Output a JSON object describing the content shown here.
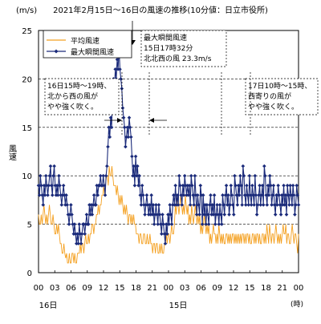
{
  "chart_data": {
    "type": "line",
    "title": "2021年2月15日～16日の風速の推移(10分値：日立市役所)",
    "y_unit": "(m/s)",
    "ylabel": "風速",
    "x_unit": "(時)",
    "ylim": [
      0,
      25
    ],
    "yticks": [
      0,
      5,
      10,
      15,
      20,
      25
    ],
    "hour_labels": [
      "00",
      "03",
      "06",
      "09",
      "12",
      "15",
      "18",
      "21",
      "00",
      "03",
      "06",
      "09",
      "12",
      "15",
      "18",
      "21",
      "00"
    ],
    "day_labels": [
      "16日",
      "15日"
    ],
    "grid": "dashed horizontal",
    "legend_position": "top-left",
    "series": [
      {
        "name": "平均風速",
        "color": "#f4a020",
        "values": [
          6,
          5,
          5,
          6,
          5,
          6,
          7,
          6,
          5,
          6,
          5,
          6,
          7,
          6,
          5,
          5,
          6,
          5,
          4,
          4,
          5,
          4,
          5,
          4,
          3,
          3,
          2,
          2,
          3,
          2,
          1.5,
          2,
          1,
          1,
          2,
          1,
          1,
          2,
          2,
          1,
          2,
          1,
          1,
          2,
          2,
          2,
          3,
          2,
          3,
          3,
          2,
          3,
          4,
          3,
          3,
          4,
          3,
          4,
          4,
          5,
          5,
          4,
          5,
          5,
          6,
          6,
          7,
          6,
          7,
          7,
          8,
          8,
          9,
          8,
          9,
          10,
          10,
          9,
          11,
          10,
          10,
          11,
          10,
          9,
          9,
          9,
          8,
          9,
          8,
          7,
          8,
          7,
          8,
          7,
          6,
          7,
          6,
          7,
          6,
          5,
          6,
          6,
          5,
          6,
          5,
          6,
          5,
          5,
          4,
          4,
          4,
          3,
          4,
          4,
          3,
          3,
          4,
          4,
          3,
          3,
          4,
          3,
          3,
          4,
          3,
          3,
          2,
          3,
          3,
          2,
          3,
          3,
          2,
          2,
          3,
          2,
          3,
          2,
          2,
          3,
          3,
          4,
          3,
          4,
          4,
          3,
          4,
          5,
          4,
          4,
          5,
          7,
          6,
          8,
          7,
          6,
          7,
          8,
          7,
          6,
          7,
          6,
          8,
          7,
          6,
          7,
          5,
          6,
          5,
          7,
          6,
          5,
          6,
          7,
          6,
          5,
          6,
          5,
          6,
          4,
          5,
          4,
          5,
          6,
          5,
          4,
          5,
          4,
          5,
          3,
          4,
          3,
          4,
          5,
          4,
          4,
          3,
          4,
          3,
          5,
          4,
          3,
          4,
          3,
          4,
          3,
          3,
          4,
          4,
          3,
          4,
          3,
          4,
          3,
          4,
          4,
          3,
          4,
          3,
          4,
          3,
          4,
          3,
          4,
          3,
          4,
          4,
          3,
          4,
          3,
          4,
          4,
          3,
          4,
          3,
          3,
          4,
          4,
          3,
          4,
          3,
          4,
          4,
          3,
          4,
          3,
          3,
          4,
          4,
          3,
          4,
          3,
          5,
          4,
          3,
          5,
          4,
          3,
          4,
          4,
          3,
          4,
          5,
          4,
          3,
          4,
          3,
          4,
          3,
          4,
          5,
          4,
          4,
          5,
          3,
          4,
          4,
          3,
          3,
          4,
          5,
          4,
          3,
          4,
          4,
          3,
          2,
          4
        ]
      },
      {
        "name": "最大瞬間風速",
        "color": "#1a2a7a",
        "values": [
          9,
          8,
          10,
          9,
          8,
          7,
          9,
          8,
          10,
          9,
          8,
          9,
          10,
          11,
          9,
          8,
          10,
          11,
          9,
          8,
          9,
          8,
          10,
          9,
          8,
          7,
          8,
          9,
          8,
          7,
          8,
          7,
          6,
          5,
          6,
          7,
          6,
          5,
          4,
          5,
          4,
          3,
          4,
          3,
          5,
          4,
          3,
          4,
          5,
          5,
          4,
          5,
          6,
          5,
          5,
          7,
          6,
          7,
          6,
          7,
          8,
          7,
          7,
          9,
          8,
          9,
          9,
          10,
          9,
          9,
          10,
          9,
          8,
          10,
          11,
          13,
          15,
          14,
          16,
          15,
          19,
          20,
          19,
          21,
          20,
          22,
          21,
          23.3,
          21,
          20,
          19,
          17,
          16,
          15,
          13,
          14,
          15,
          14,
          16,
          15,
          14,
          12,
          10,
          11,
          9,
          12,
          10,
          11,
          9,
          10,
          8,
          7,
          9,
          8,
          7,
          6,
          7,
          8,
          7,
          6,
          7,
          6,
          8,
          6,
          7,
          5,
          6,
          7,
          6,
          5,
          7,
          6,
          5,
          4,
          6,
          5,
          4,
          3,
          5,
          4,
          6,
          5,
          7,
          6,
          5,
          7,
          8,
          7,
          9,
          7,
          8,
          7,
          10,
          9,
          8,
          7,
          9,
          8,
          10,
          9,
          8,
          9,
          8,
          9,
          7,
          10,
          9,
          8,
          7,
          10,
          8,
          6,
          8,
          7,
          6,
          9,
          8,
          5,
          8,
          6,
          7,
          5,
          7,
          6,
          5,
          7,
          8,
          6,
          7,
          6,
          8,
          5,
          6,
          7,
          6,
          5,
          7,
          6,
          5,
          8,
          7,
          6,
          8,
          9,
          7,
          8,
          6,
          7,
          9,
          8,
          7,
          6,
          10,
          9,
          8,
          7,
          9,
          8,
          10,
          9,
          7,
          11,
          10,
          8,
          7,
          9,
          8,
          7,
          10,
          8,
          7,
          9,
          8,
          7,
          10,
          8,
          6,
          7,
          8,
          9,
          7,
          8,
          9,
          7,
          11,
          10,
          8,
          7,
          9,
          8,
          10,
          9,
          7,
          8,
          9,
          7,
          6,
          8,
          7,
          9,
          8,
          7,
          6,
          8,
          7,
          9,
          7,
          8,
          6,
          9,
          8,
          7,
          9,
          8,
          7,
          9,
          8,
          6,
          7,
          9,
          8,
          7
        ]
      }
    ],
    "annotations": [
      {
        "lines": [
          "最大瞬間風速",
          "15日17時32分",
          "北北西の風 23.3m/s"
        ]
      },
      {
        "lines": [
          "16日15時～19時、",
          "北から西の風が",
          "やや強く吹く。"
        ]
      },
      {
        "lines": [
          "17日10時～15時、",
          "西寄りの風が",
          "やや強く吹く。"
        ]
      }
    ]
  }
}
